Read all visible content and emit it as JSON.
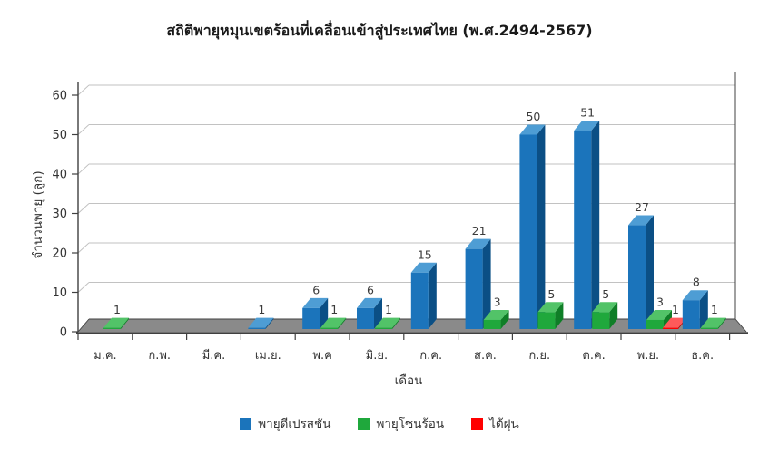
{
  "chart_data": {
    "type": "bar",
    "style": "3d-effect-column",
    "title": "สถิติพายุหมุนเขตร้อนที่เคลื่อนเข้าสู่ประเทศไทย (พ.ศ.2494-2567)",
    "xlabel": "เดือน",
    "ylabel": "จำนวนพายุ (ลูก)",
    "ylim": [
      0,
      60
    ],
    "ytick_step": 10,
    "grid": true,
    "data_labels": true,
    "legend_position": "bottom",
    "categories": [
      "ม.ค.",
      "ก.พ.",
      "มี.ค.",
      "เม.ย.",
      "พ.ค",
      "มิ.ย.",
      "ก.ค.",
      "ส.ค.",
      "ก.ย.",
      "ต.ค.",
      "พ.ย.",
      "ธ.ค."
    ],
    "series": [
      {
        "name": "พายุดีเปรสชัน",
        "color": "#1B74BB",
        "color_top": "#4E9DD4",
        "color_side": "#0B4F85",
        "values": [
          0,
          0,
          0,
          1,
          6,
          6,
          15,
          21,
          50,
          51,
          27,
          8
        ]
      },
      {
        "name": "พายุโซนร้อน",
        "color": "#1FA83C",
        "color_top": "#52C368",
        "color_side": "#0F7E27",
        "values": [
          1,
          0,
          0,
          0,
          1,
          1,
          0,
          3,
          5,
          5,
          3,
          1
        ]
      },
      {
        "name": "ไต้ฝุ่น",
        "color": "#FF0000",
        "color_top": "#FF5A5A",
        "color_side": "#B80000",
        "values": [
          0,
          0,
          0,
          0,
          0,
          0,
          0,
          0,
          0,
          0,
          1,
          0
        ]
      }
    ],
    "colors": {
      "gridline": "#c2c2c2",
      "axis": "#404040",
      "floor": "#8a8a8a",
      "label_text": "#3a3a3a",
      "background": "#ffffff"
    }
  }
}
